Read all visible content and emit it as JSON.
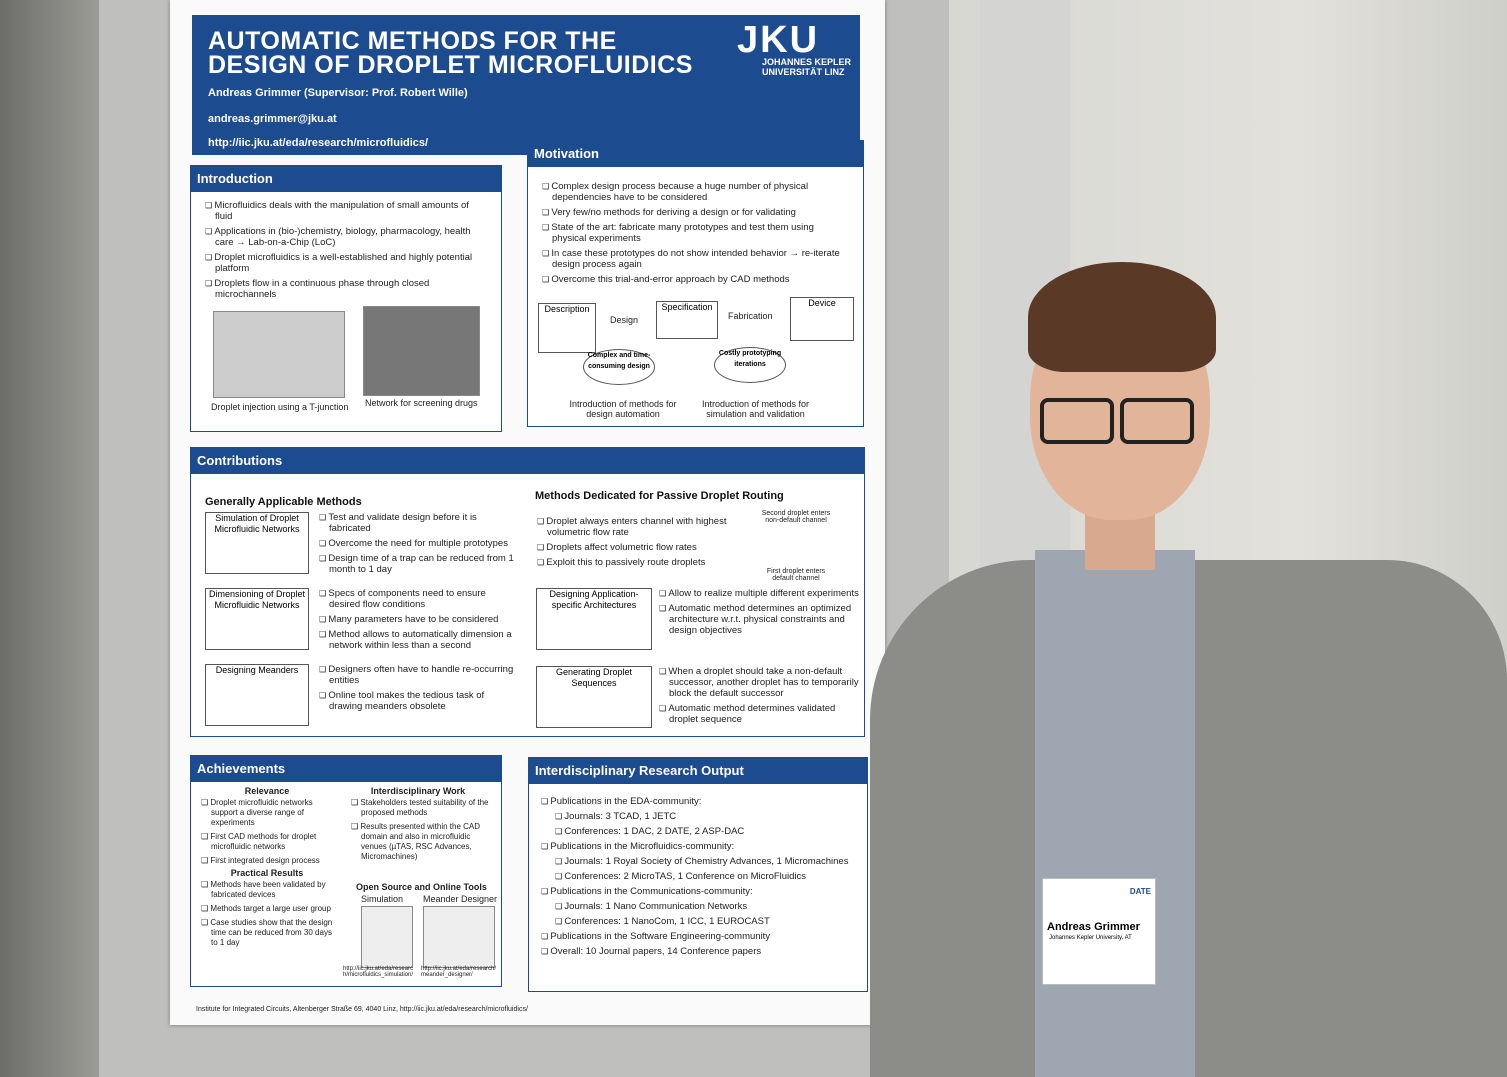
{
  "poster": {
    "title_lines": [
      "AUTOMATIC METHODS FOR THE",
      "DESIGN OF DROPLET MICROFLUIDICS"
    ],
    "logo": "JKU",
    "logo_lines": [
      "JOHANNES KEPLER",
      "UNIVERSITÄT LINZ"
    ],
    "author": "Andreas Grimmer (Supervisor: Prof. Robert Wille)",
    "email": "andreas.grimmer@jku.at",
    "url": "http://iic.jku.at/eda/research/microfluidics/",
    "introduction": {
      "heading": "Introduction",
      "items": [
        "Microfluidics deals with the manipulation of small amounts of fluid",
        "Applications in (bio-)chemistry, biology, pharmacology, health care → Lab-on-a-Chip (LoC)",
        "Droplet microfluidics is a well-established and highly potential platform",
        "Droplets flow in a continuous phase through closed microchannels"
      ],
      "figures": [
        "Droplet injection using a T-junction",
        "Network for screening drugs"
      ]
    },
    "motivation": {
      "heading": "Motivation",
      "items": [
        "Complex design process because a huge number of physical dependencies have to be considered",
        "Very few/no methods for deriving a design or for validating",
        "State of the art: fabricate many prototypes and test them using physical experiments",
        "In case these prototypes do not show intended behavior → re-iterate design process again",
        "Overcome this trial-and-error approach by CAD methods"
      ],
      "boxes": [
        "Description",
        "Specification",
        "Device"
      ],
      "arrows": [
        "Design",
        "Fabrication"
      ],
      "bursts": [
        "Complex and time-consuming design",
        "Costly prototyping iterations"
      ],
      "outcomes": [
        "Introduction of methods for design automation",
        "Introduction of methods for simulation and validation"
      ]
    },
    "contributions": {
      "heading": "Contributions",
      "left_heading": "Generally Applicable Methods",
      "right_heading": "Methods Dedicated for Passive Droplet Routing",
      "left": [
        {
          "box": "Simulation of Droplet Microfluidic Networks",
          "items": [
            "Test and validate design before it is fabricated",
            "Overcome the need for multiple prototypes",
            "Design time of a trap can be reduced from 1 month to 1 day"
          ]
        },
        {
          "box": "Dimensioning of Droplet Microfluidic Networks",
          "items": [
            "Specs of components need to ensure desired flow conditions",
            "Many parameters have to be considered",
            "Method allows to automatically dimension a network within less than a second"
          ]
        },
        {
          "box": "Designing Meanders",
          "items": [
            "Designers often have to handle re-occurring entities",
            "Online tool makes the tedious task of drawing meanders obsolete"
          ]
        }
      ],
      "routing_items": [
        "Droplet always enters channel with highest volumetric flow rate",
        "Droplets affect volumetric flow rates",
        "Exploit this to passively route droplets"
      ],
      "diagram_labels": [
        "Second droplet enters non-default channel",
        "First droplet enters default channel"
      ],
      "right": [
        {
          "box": "Designing Application-specific Architectures",
          "items": [
            "Allow to realize multiple different experiments",
            "Automatic method determines an optimized architecture w.r.t. physical constraints and design objectives"
          ]
        },
        {
          "box": "Generating Droplet Sequences",
          "items": [
            "When a droplet should take a non-default successor, another droplet has to temporarily block the default successor",
            "Automatic method determines validated droplet sequence"
          ]
        }
      ]
    },
    "achievements": {
      "heading": "Achievements",
      "groups": [
        {
          "title": "Relevance",
          "items": [
            "Droplet microfluidic networks support a diverse range of experiments",
            "First CAD methods for droplet microfluidic networks",
            "First integrated design process"
          ]
        },
        {
          "title": "Practical Results",
          "items": [
            "Methods have been validated by fabricated devices",
            "Methods target a large user group",
            "Case studies show that the design time can be reduced from 30 days to 1 day"
          ]
        },
        {
          "title": "Interdisciplinary Work",
          "items": [
            "Stakeholders tested suitability of the proposed methods",
            "Results presented within the CAD domain and also in microfluidic venues (µTAS, RSC Advances, Micromachines)"
          ]
        }
      ],
      "tools_title": "Open Source and Online Tools",
      "tools": [
        "Simulation",
        "Meander Designer"
      ],
      "links": [
        "http://iic.jku.at/eda/research/microfluidics_simulation/",
        "http://iic.jku.at/eda/research/meander_designer/"
      ]
    },
    "output": {
      "heading": "Interdisciplinary Research Output",
      "items": [
        {
          "text": "Publications in the EDA-community:",
          "sub": [
            "Journals: 3 TCAD, 1 JETC",
            "Conferences: 1 DAC, 2 DATE, 2 ASP-DAC"
          ]
        },
        {
          "text": "Publications in the Microfluidics-community:",
          "sub": [
            "Journals: 1 Royal Society of Chemistry Advances, 1 Micromachines",
            "Conferences: 2 MicroTAS, 1 Conference on MicroFluidics"
          ]
        },
        {
          "text": "Publications in the Communications-community:",
          "sub": [
            "Journals: 1  Nano Communication Networks",
            "Conferences: 1 NanoCom, 1 ICC, 1 EUROCAST"
          ]
        },
        {
          "text": "Publications in the Software Engineering-community"
        },
        {
          "text": "Overall: 10 Journal papers, 14 Conference papers"
        }
      ]
    },
    "footer": "Institute for Integrated Circuits, Altenberger Straße 69, 4040 Linz, http://iic.jku.at/eda/research/microfluidics/"
  },
  "badge": {
    "event": "DATE",
    "name": "Andreas Grimmer",
    "affiliation": "Johannes Kepler University, AT"
  }
}
